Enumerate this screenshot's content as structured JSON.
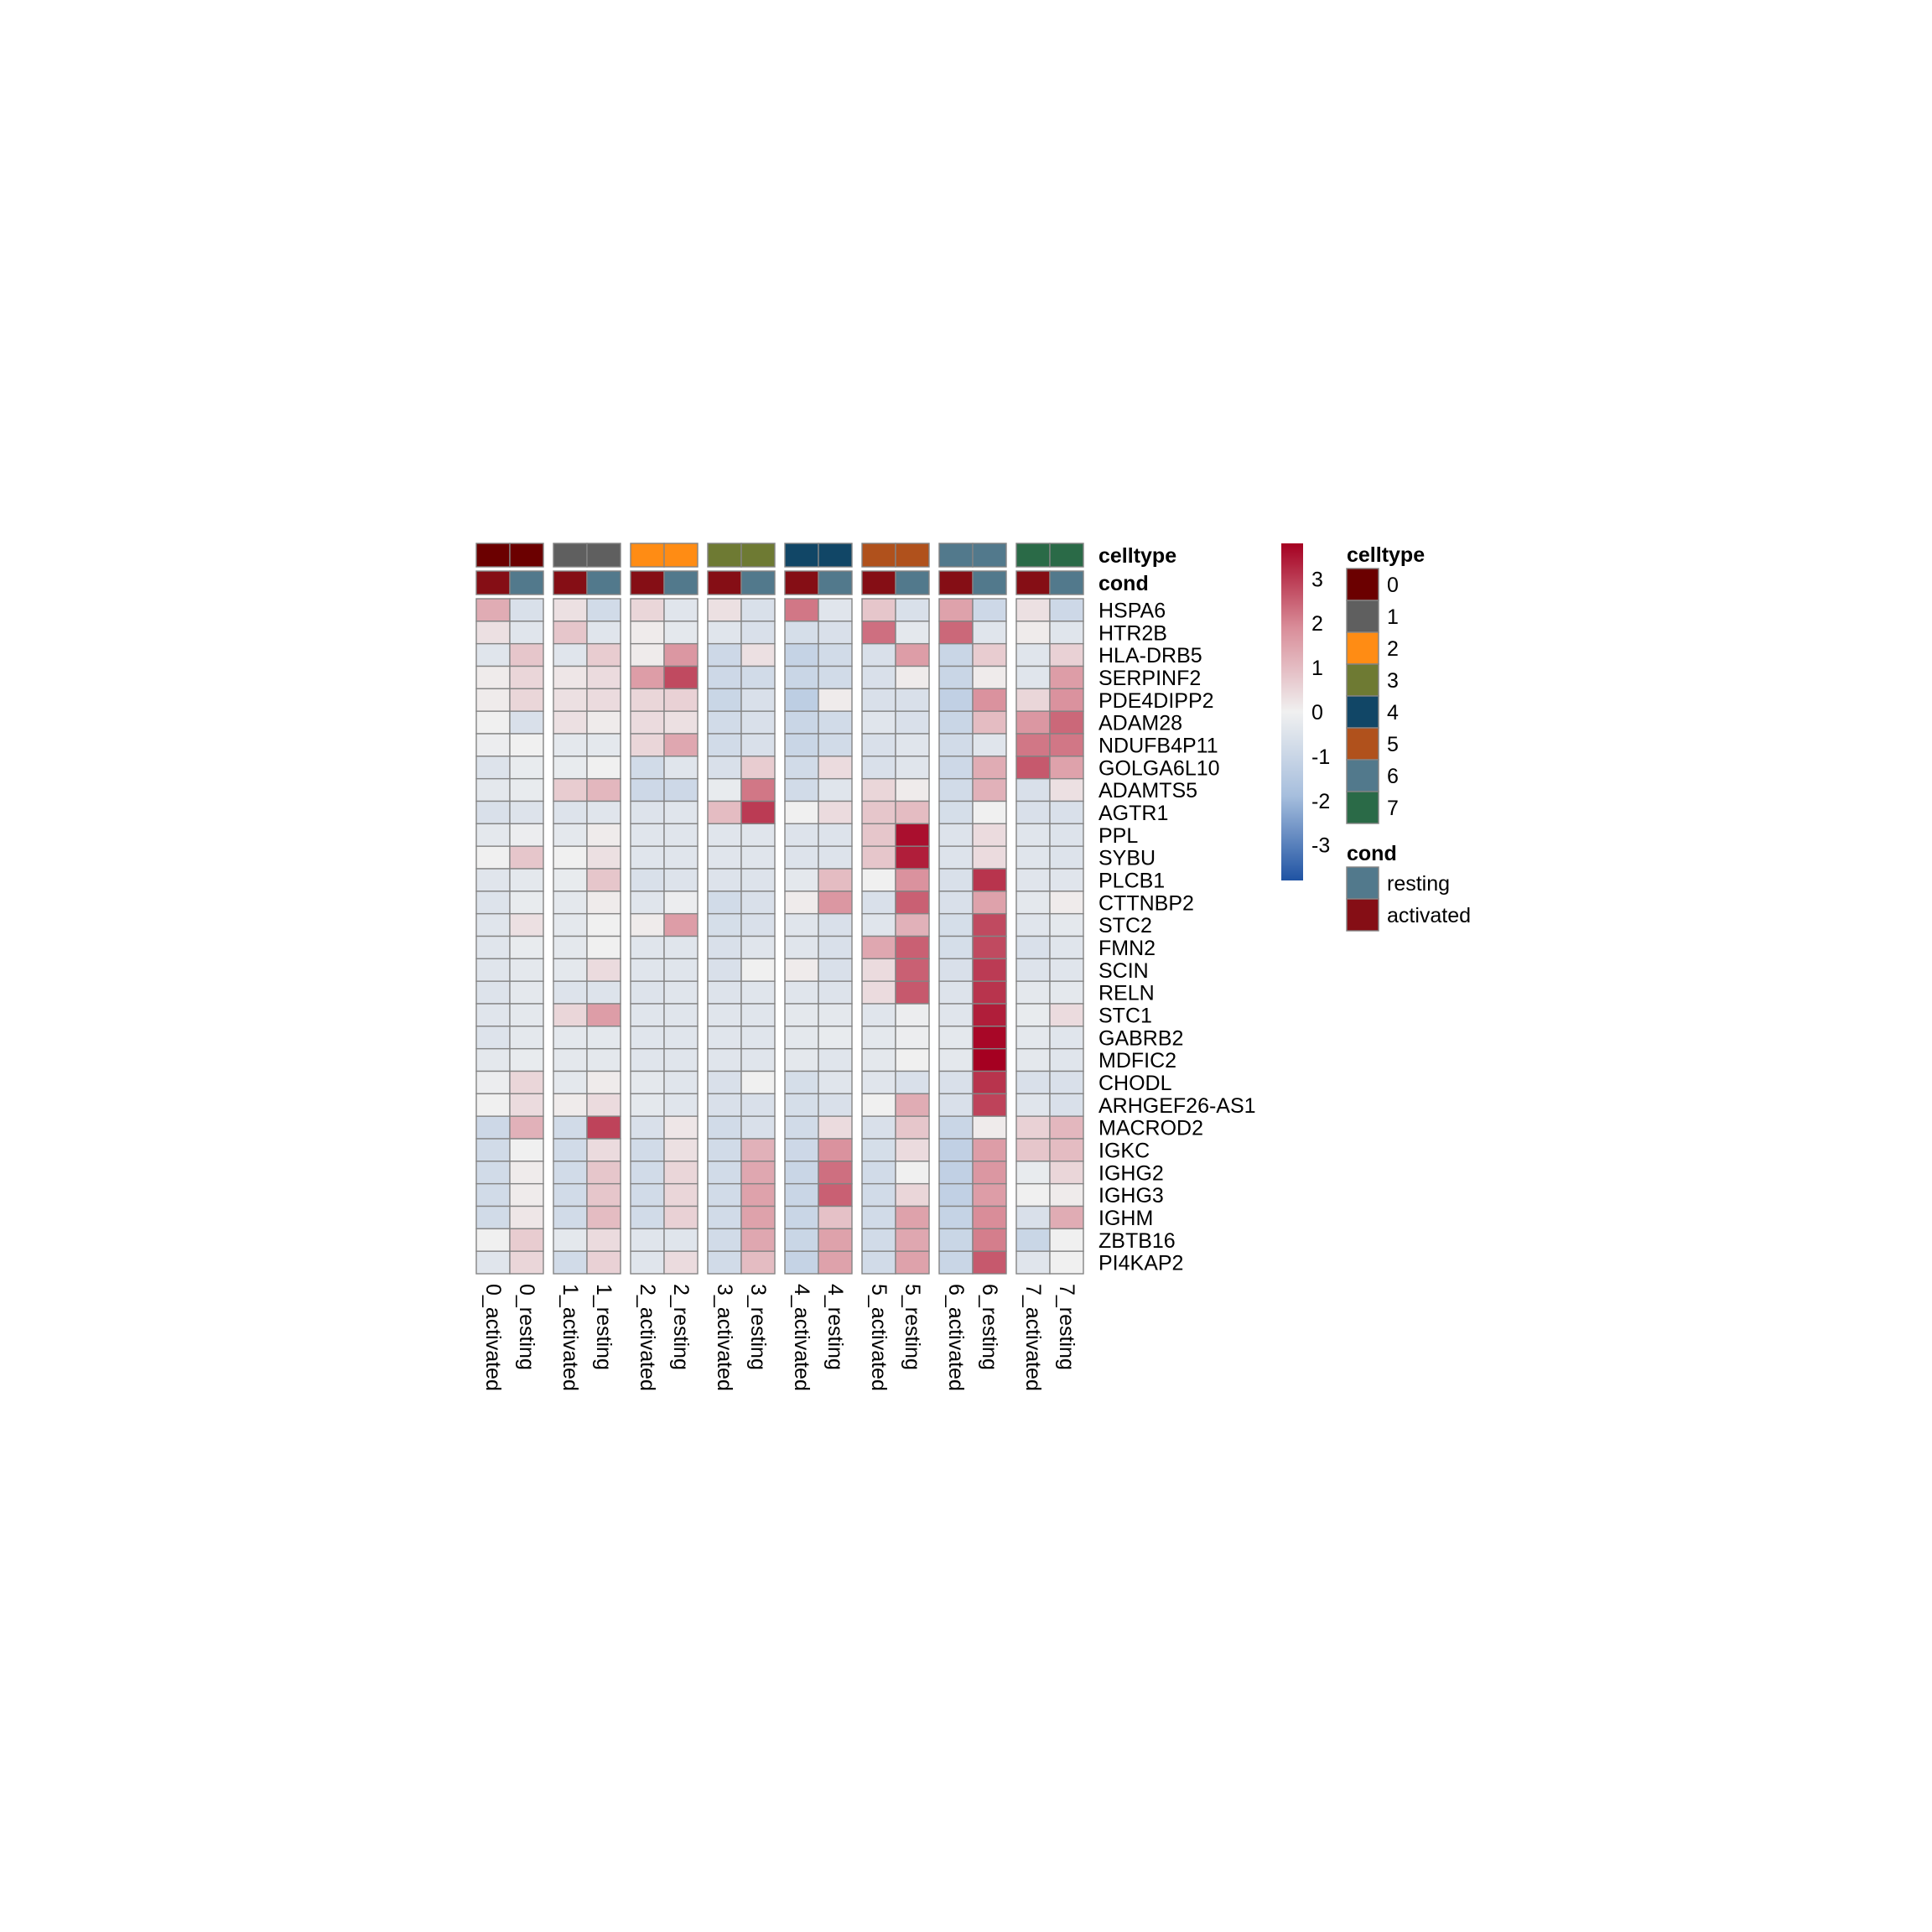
{
  "chart_data": {
    "type": "heatmap",
    "columns": [
      "0_activated",
      "0_resting",
      "1_activated",
      "1_resting",
      "2_activated",
      "2_resting",
      "3_activated",
      "3_resting",
      "4_activated",
      "4_resting",
      "5_activated",
      "5_resting",
      "6_activated",
      "6_resting",
      "7_activated",
      "7_resting"
    ],
    "rows": [
      "HSPA6",
      "HTR2B",
      "HLA-DRB5",
      "SERPINF2",
      "PDE4DIPP2",
      "ADAM28",
      "NDUFB4P11",
      "GOLGA6L10",
      "ADAMTS5",
      "AGTR1",
      "PPL",
      "SYBU",
      "PLCB1",
      "CTTNBP2",
      "STC2",
      "FMN2",
      "SCIN",
      "RELN",
      "STC1",
      "GABRB2",
      "MDFIC2",
      "CHODL",
      "ARHGEF26-AS1",
      "MACROD2",
      "IGKC",
      "IGHG2",
      "IGHG3",
      "IGHM",
      "ZBTB16",
      "PI4KAP2"
    ],
    "values": [
      [
        1.3,
        -0.6,
        0.3,
        -0.8,
        0.5,
        -0.4,
        0.3,
        -0.6,
        2.2,
        -0.4,
        0.8,
        -0.6,
        1.5,
        -0.9,
        0.3,
        -0.9
      ],
      [
        0.3,
        -0.4,
        0.8,
        -0.4,
        0.1,
        -0.3,
        -0.4,
        -0.6,
        -0.7,
        -0.6,
        2.3,
        -0.3,
        2.4,
        -0.4,
        0.1,
        -0.4
      ],
      [
        -0.4,
        0.8,
        -0.4,
        0.7,
        0.1,
        1.7,
        -0.9,
        0.3,
        -1.1,
        -0.8,
        -0.6,
        1.6,
        -1.0,
        0.7,
        -0.4,
        0.6
      ],
      [
        0.1,
        0.5,
        0.2,
        0.4,
        1.6,
        2.8,
        -0.9,
        -0.8,
        -1.0,
        -0.8,
        -0.6,
        0.1,
        -1.0,
        0.1,
        -0.4,
        1.6
      ],
      [
        0.1,
        0.5,
        0.3,
        0.4,
        0.5,
        0.6,
        -1.0,
        -0.6,
        -1.3,
        0.1,
        -0.6,
        -0.6,
        -1.2,
        1.8,
        0.5,
        1.8
      ],
      [
        0.0,
        -0.6,
        0.3,
        0.1,
        0.4,
        0.3,
        -0.8,
        -0.6,
        -1.0,
        -0.8,
        -0.4,
        -0.6,
        -1.0,
        1.0,
        1.7,
        2.4
      ],
      [
        -0.1,
        0.0,
        -0.3,
        -0.3,
        0.5,
        1.4,
        -0.8,
        -0.6,
        -1.0,
        -0.8,
        -0.6,
        -0.4,
        -0.8,
        -0.4,
        2.2,
        2.2
      ],
      [
        -0.5,
        -0.2,
        -0.2,
        0.0,
        -0.8,
        -0.4,
        -0.6,
        0.7,
        -0.8,
        0.4,
        -0.6,
        -0.4,
        -0.9,
        1.3,
        2.6,
        1.5
      ],
      [
        -0.3,
        -0.2,
        0.7,
        1.1,
        -0.9,
        -0.9,
        -0.2,
        2.2,
        -0.8,
        -0.4,
        0.5,
        0.1,
        -0.8,
        1.2,
        -0.6,
        0.3
      ],
      [
        -0.6,
        -0.5,
        -0.5,
        -0.4,
        -0.5,
        -0.4,
        1.0,
        3.0,
        0.0,
        0.4,
        0.8,
        1.0,
        -0.7,
        0.0,
        -0.6,
        -0.6
      ],
      [
        -0.3,
        -0.1,
        -0.3,
        0.1,
        -0.4,
        -0.4,
        -0.4,
        -0.4,
        -0.5,
        -0.5,
        0.8,
        3.6,
        -0.5,
        0.4,
        -0.4,
        -0.5
      ],
      [
        0.0,
        0.8,
        0.0,
        0.3,
        -0.4,
        -0.4,
        -0.4,
        -0.4,
        -0.5,
        -0.5,
        0.8,
        3.4,
        -0.5,
        0.4,
        -0.4,
        -0.5
      ],
      [
        -0.4,
        -0.3,
        -0.2,
        0.8,
        -0.6,
        -0.5,
        -0.5,
        -0.5,
        -0.3,
        1.0,
        0.0,
        1.8,
        -0.6,
        3.1,
        -0.4,
        -0.4
      ],
      [
        -0.5,
        -0.2,
        -0.3,
        0.1,
        -0.4,
        -0.1,
        -0.8,
        -0.6,
        0.1,
        1.7,
        -0.6,
        2.5,
        -0.6,
        1.5,
        -0.3,
        0.1
      ],
      [
        -0.4,
        0.3,
        -0.3,
        0.0,
        0.1,
        1.6,
        -0.7,
        -0.6,
        -0.4,
        -0.6,
        -0.4,
        1.2,
        -0.7,
        2.8,
        -0.4,
        -0.3
      ],
      [
        -0.4,
        -0.2,
        -0.3,
        0.0,
        -0.4,
        -0.4,
        -0.6,
        -0.4,
        -0.4,
        -0.6,
        1.4,
        2.5,
        -0.7,
        2.8,
        -0.6,
        -0.4
      ],
      [
        -0.4,
        -0.3,
        -0.3,
        0.4,
        -0.4,
        -0.4,
        -0.6,
        0.0,
        0.1,
        -0.6,
        0.4,
        2.5,
        -0.6,
        3.0,
        -0.5,
        -0.4
      ],
      [
        -0.5,
        -0.3,
        -0.5,
        -0.5,
        -0.5,
        -0.4,
        -0.5,
        -0.4,
        -0.4,
        -0.5,
        0.4,
        2.6,
        -0.5,
        3.1,
        -0.3,
        -0.3
      ],
      [
        -0.4,
        -0.3,
        0.5,
        1.6,
        -0.4,
        -0.4,
        -0.4,
        -0.4,
        -0.3,
        -0.3,
        -0.4,
        -0.1,
        -0.4,
        3.4,
        -0.2,
        0.4
      ],
      [
        -0.5,
        -0.3,
        -0.3,
        -0.3,
        -0.4,
        -0.4,
        -0.4,
        -0.4,
        -0.3,
        -0.2,
        -0.3,
        -0.1,
        -0.3,
        3.7,
        -0.3,
        -0.4
      ],
      [
        -0.3,
        -0.2,
        -0.3,
        -0.3,
        -0.4,
        -0.4,
        -0.4,
        -0.4,
        -0.3,
        -0.4,
        -0.3,
        0.0,
        -0.3,
        3.8,
        -0.3,
        -0.4
      ],
      [
        -0.1,
        0.5,
        -0.3,
        0.1,
        -0.3,
        -0.4,
        -0.6,
        0.0,
        -0.7,
        -0.4,
        -0.4,
        -0.6,
        -0.6,
        3.1,
        -0.6,
        -0.6
      ],
      [
        0.0,
        0.4,
        0.1,
        0.4,
        -0.3,
        -0.4,
        -0.6,
        -0.6,
        -0.7,
        -0.6,
        0.0,
        1.3,
        -0.6,
        2.9,
        -0.4,
        -0.6
      ],
      [
        -0.9,
        1.2,
        -0.8,
        2.9,
        -0.6,
        0.2,
        -0.8,
        -0.6,
        -0.8,
        0.4,
        -0.6,
        0.8,
        -1.0,
        0.1,
        0.6,
        1.1
      ],
      [
        -0.8,
        0.0,
        -0.8,
        0.4,
        -0.8,
        0.3,
        -0.8,
        1.2,
        -0.9,
        1.8,
        -0.7,
        0.4,
        -1.2,
        1.6,
        0.8,
        1.0
      ],
      [
        -0.8,
        0.1,
        -0.8,
        0.8,
        -0.8,
        0.5,
        -0.8,
        1.4,
        -1.0,
        2.3,
        -0.8,
        0.0,
        -1.2,
        1.7,
        -0.2,
        0.5
      ],
      [
        -0.8,
        0.1,
        -0.8,
        0.8,
        -0.8,
        0.5,
        -0.8,
        1.5,
        -1.0,
        2.5,
        -0.8,
        0.5,
        -1.2,
        1.6,
        0.0,
        0.1
      ],
      [
        -0.8,
        0.2,
        -0.8,
        1.0,
        -0.8,
        0.6,
        -0.8,
        1.5,
        -1.0,
        0.9,
        -0.8,
        1.5,
        -1.1,
        1.9,
        -0.6,
        1.3
      ],
      [
        0.0,
        0.7,
        -0.3,
        0.4,
        -0.4,
        -0.4,
        -0.8,
        1.4,
        -1.0,
        1.5,
        -0.8,
        1.4,
        -1.0,
        2.1,
        -1.0,
        0.0
      ],
      [
        -0.4,
        0.5,
        -0.8,
        0.6,
        -0.4,
        0.4,
        -0.8,
        1.0,
        -1.1,
        1.5,
        -0.8,
        1.5,
        -1.0,
        2.6,
        -0.4,
        0.0
      ]
    ],
    "annotations": {
      "celltype": {
        "title": "celltype",
        "values": [
          "0",
          "0",
          "1",
          "1",
          "2",
          "2",
          "3",
          "3",
          "4",
          "4",
          "5",
          "5",
          "6",
          "6",
          "7",
          "7"
        ]
      },
      "cond": {
        "title": "cond",
        "values": [
          "activated",
          "resting",
          "activated",
          "resting",
          "activated",
          "resting",
          "activated",
          "resting",
          "activated",
          "resting",
          "activated",
          "resting",
          "activated",
          "resting",
          "activated",
          "resting"
        ]
      }
    },
    "legends": {
      "colorbar": {
        "ticks": [
          3,
          2,
          1,
          0,
          -1,
          -2,
          -3
        ],
        "tick_labels": [
          "3",
          "2",
          "1",
          "0",
          "-1",
          "-2",
          "-3"
        ],
        "range": [
          -3.8,
          3.8
        ]
      },
      "celltype": {
        "title": "celltype",
        "items": [
          {
            "label": "0",
            "color": "#6b0000"
          },
          {
            "label": "1",
            "color": "#5f5f5f"
          },
          {
            "label": "2",
            "color": "#ff8c14"
          },
          {
            "label": "3",
            "color": "#6e7a33"
          },
          {
            "label": "4",
            "color": "#114666"
          },
          {
            "label": "5",
            "color": "#b0511c"
          },
          {
            "label": "6",
            "color": "#52798c"
          },
          {
            "label": "7",
            "color": "#2a6a47"
          }
        ]
      },
      "cond": {
        "title": "cond",
        "items": [
          {
            "label": "resting",
            "color": "#52798c"
          },
          {
            "label": "activated",
            "color": "#850e15"
          }
        ]
      }
    },
    "color_scale": {
      "stops": [
        "#1f53a3",
        "#a6bedd",
        "#f0f0f0",
        "#d98d99",
        "#a50021"
      ],
      "cell_border": "#848484"
    }
  }
}
